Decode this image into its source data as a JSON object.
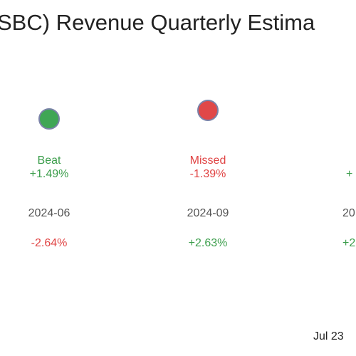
{
  "title": "SBC) Revenue Quarterly Estima",
  "columns": [
    {
      "status": "Beat",
      "surprise": "+1.49%",
      "date": "2024-06",
      "change": "-2.64%"
    },
    {
      "status": "Missed",
      "surprise": "-1.39%",
      "date": "2024-09",
      "change": "+2.63%"
    },
    {
      "surprise": "+",
      "date": "20",
      "change": "+2"
    }
  ],
  "footer": "Jul 23"
}
